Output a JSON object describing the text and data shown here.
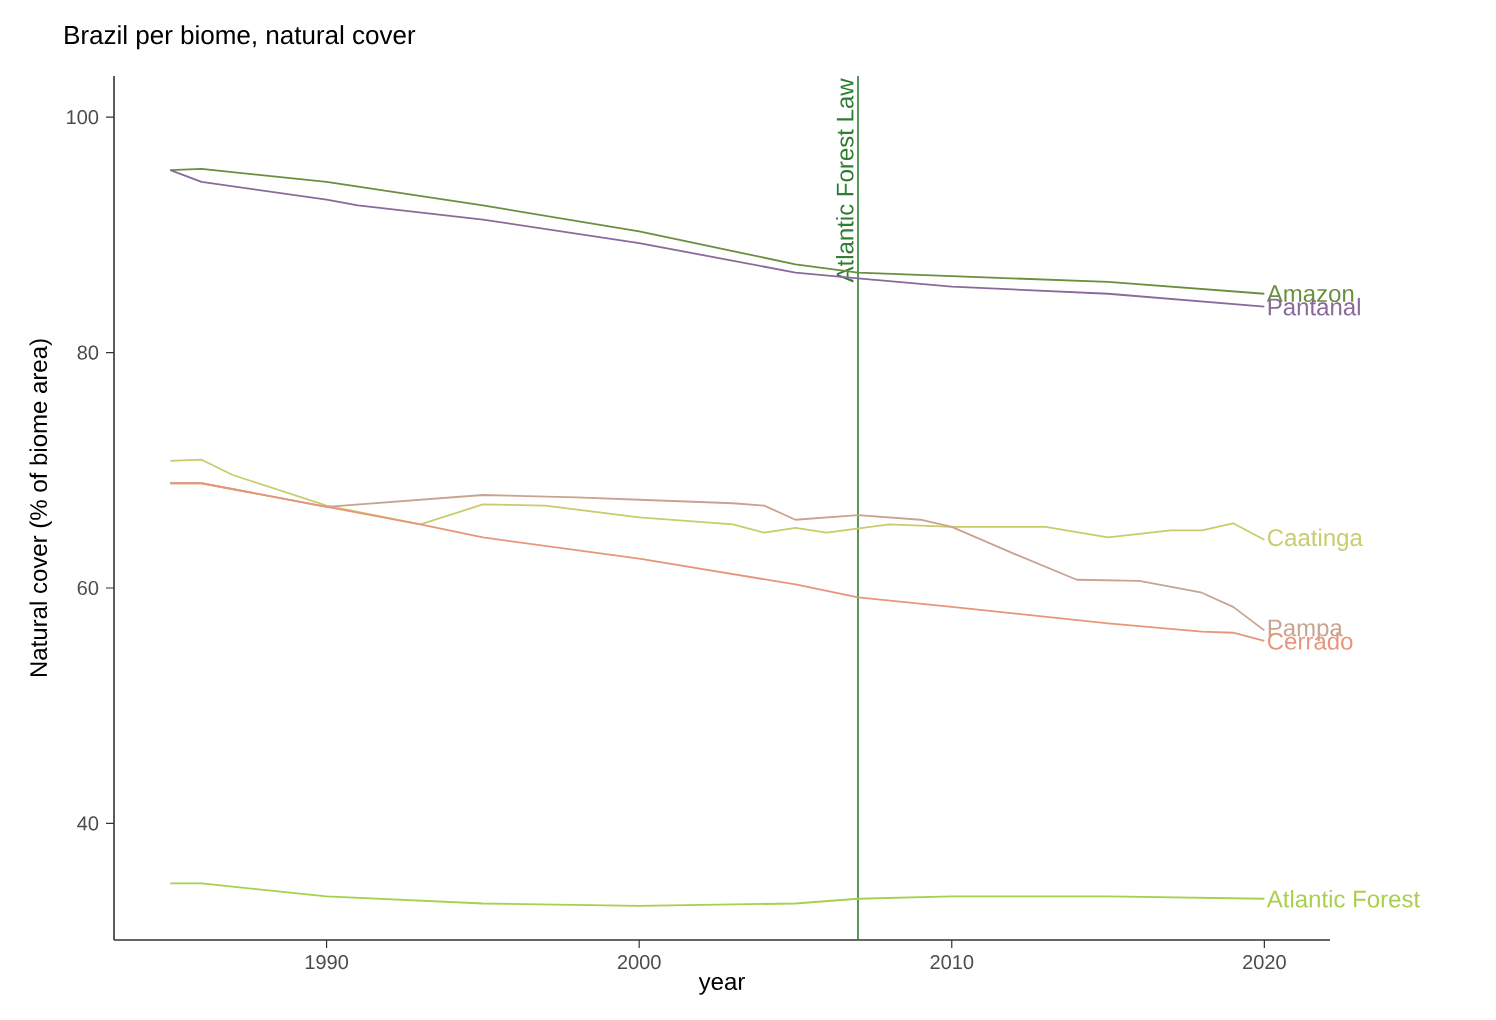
{
  "chart_data": {
    "type": "line",
    "title": "Brazil per biome, natural cover",
    "xlabel": "year",
    "ylabel": "Natural cover (% of biome area)",
    "xlim": [
      1983.2,
      2022.1
    ],
    "ylim": [
      30.1,
      103.5
    ],
    "xticks": [
      1990,
      2000,
      2010,
      2020
    ],
    "yticks": [
      40,
      60,
      80,
      100
    ],
    "grid": false,
    "series": [
      {
        "name": "Amazon",
        "color": "#6b8f3e",
        "x": [
          1985,
          1986,
          1990,
          1995,
          2000,
          2005,
          2007,
          2010,
          2015,
          2020
        ],
        "values": [
          95.5,
          95.6,
          94.5,
          92.5,
          90.3,
          87.5,
          86.8,
          86.5,
          86.0,
          85.0
        ]
      },
      {
        "name": "Pantanal",
        "color": "#8a6a9a",
        "x": [
          1985,
          1986,
          1990,
          1991,
          1995,
          2000,
          2005,
          2007,
          2010,
          2015,
          2020
        ],
        "values": [
          95.5,
          94.5,
          93.0,
          92.5,
          91.3,
          89.3,
          86.8,
          86.3,
          85.6,
          85.0,
          83.9
        ]
      },
      {
        "name": "Caatinga",
        "color": "#c8cc6a",
        "x": [
          1985,
          1986,
          1987,
          1990,
          1993,
          1995,
          1997,
          2000,
          2003,
          2004,
          2005,
          2006,
          2008,
          2010,
          2013,
          2015,
          2017,
          2018,
          2019,
          2020
        ],
        "values": [
          70.8,
          70.9,
          69.6,
          67.0,
          65.4,
          67.1,
          67.0,
          66.0,
          65.4,
          64.7,
          65.1,
          64.7,
          65.4,
          65.2,
          65.2,
          64.3,
          64.9,
          64.9,
          65.5,
          64.1
        ]
      },
      {
        "name": "Pampa",
        "color": "#c8a490",
        "x": [
          1985,
          1986,
          1990,
          1995,
          1998,
          2000,
          2003,
          2004,
          2005,
          2007,
          2009,
          2010,
          2012,
          2014,
          2016,
          2018,
          2019,
          2020
        ],
        "values": [
          68.9,
          68.9,
          66.9,
          67.9,
          67.7,
          67.5,
          67.2,
          67.0,
          65.8,
          66.2,
          65.8,
          65.2,
          62.9,
          60.7,
          60.6,
          59.6,
          58.4,
          56.4
        ]
      },
      {
        "name": "Cerrado",
        "color": "#e8967a",
        "x": [
          1985,
          1986,
          1990,
          1993,
          1995,
          2000,
          2005,
          2007,
          2010,
          2015,
          2018,
          2019,
          2020
        ],
        "values": [
          68.9,
          68.9,
          66.9,
          65.4,
          64.3,
          62.5,
          60.3,
          59.2,
          58.4,
          57.0,
          56.3,
          56.2,
          55.5
        ]
      },
      {
        "name": "Atlantic Forest",
        "color": "#a8d04a",
        "x": [
          1985,
          1986,
          1990,
          1995,
          2000,
          2005,
          2007,
          2010,
          2015,
          2020
        ],
        "values": [
          34.9,
          34.9,
          33.8,
          33.2,
          33.0,
          33.2,
          33.6,
          33.8,
          33.8,
          33.6
        ]
      }
    ],
    "ref_lines": [
      {
        "axis": "x",
        "value": 2007,
        "label": "Atlantic Forest Law",
        "color": "#2e7d32"
      }
    ]
  }
}
